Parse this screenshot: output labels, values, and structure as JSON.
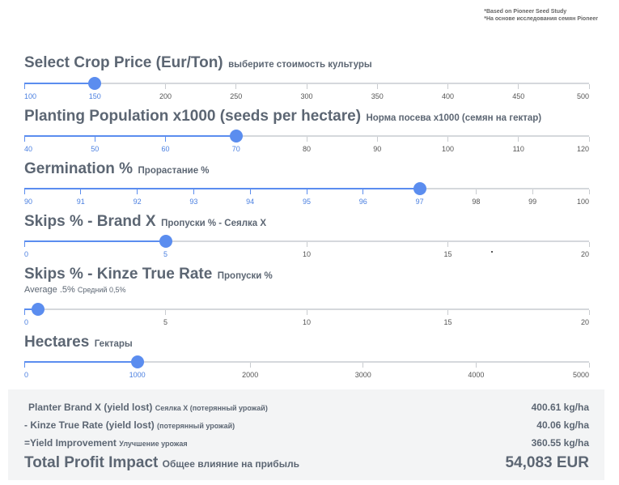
{
  "note": {
    "line1": "*Based on Pioneer Seed Study",
    "line2": "*На основе исследования семян Pioneer"
  },
  "colors": {
    "accent": "#5b8def",
    "track": "#d5d8dc",
    "panel": "#f3f4f5",
    "text": "#5c6673"
  },
  "sliders": [
    {
      "title": "Select Crop Price (Eur/Ton)",
      "subtitle": "выберите стоимость культуры",
      "min": 100,
      "max": 500,
      "value": 150,
      "ticks": [
        "100",
        "150",
        "200",
        "250",
        "300",
        "350",
        "400",
        "450",
        "500"
      ]
    },
    {
      "title": "Planting Population x1000 (seeds per hectare)",
      "subtitle": "Норма посева x1000 (семян на гектар)",
      "min": 40,
      "max": 120,
      "value": 70,
      "ticks": [
        "40",
        "50",
        "60",
        "70",
        "80",
        "90",
        "100",
        "110",
        "120"
      ]
    },
    {
      "title": "Germination %",
      "subtitle": "Прорастание %",
      "min": 90,
      "max": 100,
      "value": 97,
      "ticks": [
        "90",
        "91",
        "92",
        "93",
        "94",
        "95",
        "96",
        "97",
        "98",
        "99",
        "100"
      ]
    },
    {
      "title": "Skips % - Brand X",
      "subtitle": "Пропуски % - Сеялка X",
      "min": 0,
      "max": 20,
      "value": 5,
      "ticks": [
        "0",
        "5",
        "10",
        "15",
        "20"
      ]
    },
    {
      "title": "Skips % - Kinze True Rate",
      "subtitle": "Пропуски %",
      "avg": "Average .5%",
      "avg_sub": "Средний 0,5%",
      "min": 0,
      "max": 20,
      "value": 0.5,
      "ticks": [
        "0",
        "5",
        "10",
        "15",
        "20"
      ]
    },
    {
      "title": "Hectares",
      "subtitle": "Гектары",
      "min": 0,
      "max": 5000,
      "value": 1000,
      "ticks": [
        "0",
        "1000",
        "2000",
        "3000",
        "4000",
        "5000"
      ]
    }
  ],
  "results": {
    "brand_x": {
      "label": "Planter Brand X (yield lost)",
      "sub": "Сеялка X (потерянный урожай)",
      "value": "400.61 kg/ha"
    },
    "kinze": {
      "label": "- Kinze True Rate (yield lost)",
      "sub": "(потерянный урожай)",
      "value": "40.06 kg/ha"
    },
    "improvement": {
      "label": "=Yield Improvement",
      "sub": "Улучшение урожая",
      "value": "360.55 kg/ha"
    },
    "total": {
      "label": "Total Profit Impact",
      "sub": "Общее влияние на прибыль",
      "value": "54,083 EUR"
    }
  }
}
